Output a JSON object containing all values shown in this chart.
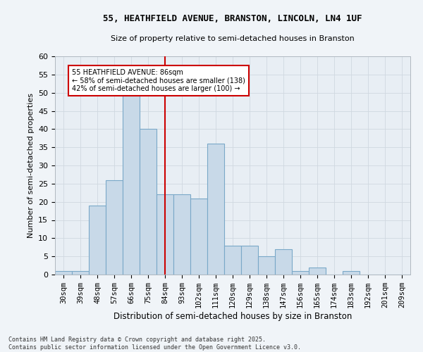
{
  "title_line1": "55, HEATHFIELD AVENUE, BRANSTON, LINCOLN, LN4 1UF",
  "title_line2": "Size of property relative to semi-detached houses in Branston",
  "xlabel": "Distribution of semi-detached houses by size in Branston",
  "ylabel": "Number of semi-detached properties",
  "categories": [
    "30sqm",
    "39sqm",
    "48sqm",
    "57sqm",
    "66sqm",
    "75sqm",
    "84sqm",
    "93sqm",
    "102sqm",
    "111sqm",
    "120sqm",
    "129sqm",
    "138sqm",
    "147sqm",
    "156sqm",
    "165sqm",
    "174sqm",
    "183sqm",
    "192sqm",
    "201sqm",
    "209sqm"
  ],
  "values": [
    1,
    1,
    19,
    26,
    50,
    40,
    22,
    22,
    21,
    36,
    8,
    8,
    5,
    7,
    1,
    2,
    0,
    1,
    0,
    0,
    0
  ],
  "bar_color": "#c8d9e8",
  "bar_edge_color": "#7aa8c8",
  "marker_index": 6,
  "annotation_text": "55 HEATHFIELD AVENUE: 86sqm\n← 58% of semi-detached houses are smaller (138)\n42% of semi-detached houses are larger (100) →",
  "annotation_box_color": "#ffffff",
  "annotation_box_edge_color": "#cc0000",
  "marker_line_color": "#cc0000",
  "grid_color": "#d0d8e0",
  "background_color": "#e8eef4",
  "fig_background_color": "#f0f4f8",
  "footer_text": "Contains HM Land Registry data © Crown copyright and database right 2025.\nContains public sector information licensed under the Open Government Licence v3.0.",
  "ylim": [
    0,
    60
  ],
  "yticks": [
    0,
    5,
    10,
    15,
    20,
    25,
    30,
    35,
    40,
    45,
    50,
    55,
    60
  ]
}
